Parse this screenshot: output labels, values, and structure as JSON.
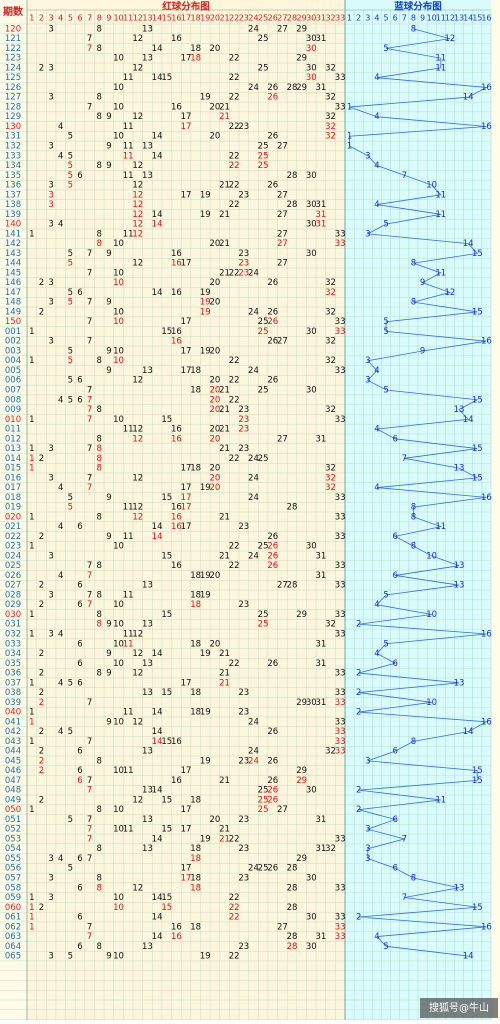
{
  "header": {
    "period_label": "期数",
    "red_title": "红球分布图",
    "blue_title": "蓝球分布图",
    "red_columns": [
      1,
      2,
      3,
      4,
      5,
      6,
      7,
      8,
      9,
      10,
      11,
      12,
      13,
      14,
      15,
      16,
      17,
      18,
      19,
      20,
      21,
      22,
      23,
      24,
      25,
      26,
      27,
      28,
      29,
      30,
      31,
      32,
      33
    ],
    "blue_columns": [
      1,
      2,
      3,
      4,
      5,
      6,
      7,
      8,
      9,
      10,
      11,
      12,
      13,
      14,
      15,
      16
    ]
  },
  "rows": [
    {
      "period": "120",
      "red": [
        3,
        8,
        13,
        24,
        27,
        29
      ],
      "blue": 8
    },
    {
      "period": "121",
      "red": [
        7,
        12,
        16,
        25,
        30,
        31
      ],
      "blue": 12
    },
    {
      "period": "122",
      "red": [
        7,
        8,
        14,
        18,
        20,
        30
      ],
      "blue": 5
    },
    {
      "period": "123",
      "red": [
        10,
        13,
        17,
        18,
        22,
        29
      ],
      "blue": 11
    },
    {
      "period": "124",
      "red": [
        2,
        3,
        12,
        25,
        30,
        32
      ],
      "blue": 11
    },
    {
      "period": "125",
      "red": [
        11,
        14,
        15,
        22,
        30,
        33
      ],
      "blue": 4
    },
    {
      "period": "126",
      "red": [
        10,
        24,
        26,
        28,
        29,
        31
      ],
      "blue": 16
    },
    {
      "period": "127",
      "red": [
        3,
        8,
        19,
        22,
        26,
        32
      ],
      "blue": 14
    },
    {
      "period": "128",
      "red": [
        7,
        10,
        16,
        20,
        21,
        33
      ],
      "blue": 1
    },
    {
      "period": "129",
      "red": [
        8,
        9,
        12,
        17,
        21,
        32
      ],
      "blue": 4
    },
    {
      "period": "130",
      "red": [
        4,
        11,
        17,
        22,
        23,
        32
      ],
      "blue": 16
    },
    {
      "period": "131",
      "red": [
        5,
        10,
        14,
        20,
        26,
        32
      ],
      "blue": 1
    },
    {
      "period": "132",
      "red": [
        3,
        9,
        11,
        13,
        25,
        27
      ],
      "blue": 1
    },
    {
      "period": "133",
      "red": [
        4,
        5,
        11,
        14,
        22,
        25
      ],
      "blue": 3
    },
    {
      "period": "134",
      "red": [
        5,
        8,
        9,
        12,
        22,
        25
      ],
      "blue": 4
    },
    {
      "period": "135",
      "red": [
        5,
        6,
        11,
        13,
        28,
        30
      ],
      "blue": 7
    },
    {
      "period": "136",
      "red": [
        3,
        5,
        12,
        21,
        22,
        26
      ],
      "blue": 10
    },
    {
      "period": "137",
      "red": [
        3,
        12,
        17,
        19,
        23,
        27
      ],
      "blue": 11
    },
    {
      "period": "138",
      "red": [
        3,
        12,
        22,
        28,
        30,
        31
      ],
      "blue": 4
    },
    {
      "period": "139",
      "red": [
        12,
        14,
        19,
        21,
        27,
        31
      ],
      "blue": 11
    },
    {
      "period": "140",
      "red": [
        3,
        4,
        12,
        14,
        30,
        31
      ],
      "blue": 5
    },
    {
      "period": "141",
      "red": [
        1,
        8,
        11,
        12,
        27,
        33
      ],
      "blue": 3
    },
    {
      "period": "142",
      "red": [
        8,
        10,
        20,
        21,
        27,
        33
      ],
      "blue": 14
    },
    {
      "period": "143",
      "red": [
        5,
        7,
        9,
        16,
        23,
        30
      ],
      "blue": 15
    },
    {
      "period": "144",
      "red": [
        5,
        12,
        16,
        17,
        23,
        27
      ],
      "blue": 8
    },
    {
      "period": "145",
      "red": [
        7,
        10,
        21,
        22,
        23,
        24
      ],
      "blue": 11
    },
    {
      "period": "146",
      "red": [
        2,
        3,
        10,
        20,
        26,
        32
      ],
      "blue": 9
    },
    {
      "period": "147",
      "red": [
        5,
        6,
        14,
        16,
        19,
        32
      ],
      "blue": 12
    },
    {
      "period": "148",
      "red": [
        3,
        5,
        7,
        9,
        19,
        20
      ],
      "blue": 8
    },
    {
      "period": "149",
      "red": [
        2,
        10,
        19,
        24,
        26,
        32
      ],
      "blue": 15
    },
    {
      "period": "150",
      "red": [
        7,
        10,
        17,
        25,
        26,
        33
      ],
      "blue": 5
    },
    {
      "period": "001",
      "red": [
        1,
        15,
        16,
        25,
        30,
        33
      ],
      "blue": 5
    },
    {
      "period": "002",
      "red": [
        3,
        7,
        16,
        26,
        27,
        32
      ],
      "blue": 16
    },
    {
      "period": "003",
      "red": [
        5,
        9,
        10,
        17,
        19,
        20
      ],
      "blue": 9
    },
    {
      "period": "004",
      "red": [
        1,
        5,
        8,
        10,
        22,
        32
      ],
      "blue": 3
    },
    {
      "period": "005",
      "red": [
        9,
        13,
        17,
        18,
        24,
        33
      ],
      "blue": 4
    },
    {
      "period": "006",
      "red": [
        5,
        6,
        12,
        20,
        22,
        26
      ],
      "blue": 3
    },
    {
      "period": "007",
      "red": [
        7,
        18,
        20,
        21,
        25,
        30
      ],
      "blue": 5
    },
    {
      "period": "008",
      "red": [
        4,
        5,
        6,
        7,
        20,
        22
      ],
      "blue": 15
    },
    {
      "period": "009",
      "red": [
        7,
        8,
        20,
        21,
        23,
        32
      ],
      "blue": 13
    },
    {
      "period": "010",
      "red": [
        1,
        7,
        10,
        15,
        23,
        33
      ],
      "blue": 14
    },
    {
      "period": "011",
      "red": [
        11,
        12,
        16,
        20,
        21,
        23
      ],
      "blue": 4
    },
    {
      "period": "012",
      "red": [
        8,
        12,
        16,
        20,
        27,
        31
      ],
      "blue": 6
    },
    {
      "period": "013",
      "red": [
        1,
        3,
        7,
        8,
        21,
        23
      ],
      "blue": 15
    },
    {
      "period": "014",
      "red": [
        1,
        2,
        8,
        22,
        24,
        25
      ],
      "blue": 7
    },
    {
      "period": "015",
      "red": [
        1,
        8,
        17,
        18,
        20,
        32
      ],
      "blue": 13
    },
    {
      "period": "016",
      "red": [
        3,
        7,
        12,
        20,
        24,
        32
      ],
      "blue": 15
    },
    {
      "period": "017",
      "red": [
        4,
        7,
        17,
        19,
        20,
        32
      ],
      "blue": 4
    },
    {
      "period": "018",
      "red": [
        5,
        9,
        15,
        17,
        24,
        33
      ],
      "blue": 16
    },
    {
      "period": "019",
      "red": [
        5,
        11,
        12,
        16,
        17,
        28
      ],
      "blue": 8
    },
    {
      "period": "020",
      "red": [
        1,
        8,
        12,
        16,
        21,
        33
      ],
      "blue": 8
    },
    {
      "period": "021",
      "red": [
        4,
        6,
        14,
        16,
        17,
        23
      ],
      "blue": 11
    },
    {
      "period": "022",
      "red": [
        2,
        9,
        11,
        14,
        26,
        33
      ],
      "blue": 6
    },
    {
      "period": "023",
      "red": [
        1,
        10,
        22,
        25,
        26,
        30
      ],
      "blue": 8
    },
    {
      "period": "024",
      "red": [
        3,
        15,
        21,
        24,
        26,
        31
      ],
      "blue": 10
    },
    {
      "period": "025",
      "red": [
        7,
        8,
        16,
        22,
        26,
        33
      ],
      "blue": 13
    },
    {
      "period": "026",
      "red": [
        4,
        7,
        18,
        19,
        20,
        31
      ],
      "blue": 6
    },
    {
      "period": "027",
      "red": [
        2,
        6,
        13,
        27,
        28,
        33
      ],
      "blue": 13
    },
    {
      "period": "028",
      "red": [
        3,
        7,
        8,
        11,
        18,
        19
      ],
      "blue": 5
    },
    {
      "period": "029",
      "red": [
        2,
        6,
        7,
        10,
        18,
        23
      ],
      "blue": 4
    },
    {
      "period": "030",
      "red": [
        1,
        8,
        15,
        25,
        29,
        33
      ],
      "blue": 10
    },
    {
      "period": "031",
      "red": [
        8,
        9,
        10,
        13,
        25,
        32
      ],
      "blue": 2
    },
    {
      "period": "032",
      "red": [
        1,
        3,
        4,
        11,
        12,
        33
      ],
      "blue": 16
    },
    {
      "period": "033",
      "red": [
        6,
        10,
        11,
        18,
        20,
        31
      ],
      "blue": 5
    },
    {
      "period": "034",
      "red": [
        2,
        9,
        12,
        14,
        19,
        21
      ],
      "blue": 4
    },
    {
      "period": "035",
      "red": [
        6,
        10,
        13,
        22,
        26,
        31
      ],
      "blue": 6
    },
    {
      "period": "036",
      "red": [
        2,
        8,
        9,
        12,
        21,
        33
      ],
      "blue": 2
    },
    {
      "period": "037",
      "red": [
        1,
        4,
        5,
        6,
        17,
        21
      ],
      "blue": 13
    },
    {
      "period": "038",
      "red": [
        2,
        13,
        15,
        18,
        23,
        33
      ],
      "blue": 2
    },
    {
      "period": "039",
      "red": [
        2,
        7,
        29,
        30,
        31,
        33
      ],
      "blue": 10
    },
    {
      "period": "040",
      "red": [
        1,
        11,
        14,
        18,
        19,
        23
      ],
      "blue": 2
    },
    {
      "period": "041",
      "red": [
        1,
        9,
        10,
        12,
        24,
        33
      ],
      "blue": 16
    },
    {
      "period": "042",
      "red": [
        2,
        4,
        5,
        14,
        26,
        33
      ],
      "blue": 14
    },
    {
      "period": "043",
      "red": [
        1,
        7,
        14,
        15,
        16,
        33
      ],
      "blue": 8
    },
    {
      "period": "044",
      "red": [
        2,
        6,
        13,
        24,
        32,
        33
      ],
      "blue": 6
    },
    {
      "period": "045",
      "red": [
        2,
        8,
        19,
        23,
        24,
        26
      ],
      "blue": 3
    },
    {
      "period": "046",
      "red": [
        2,
        6,
        10,
        11,
        17,
        29
      ],
      "blue": 15
    },
    {
      "period": "047",
      "red": [
        6,
        7,
        16,
        21,
        26,
        29
      ],
      "blue": 15
    },
    {
      "period": "048",
      "red": [
        7,
        13,
        14,
        25,
        26,
        30
      ],
      "blue": 2
    },
    {
      "period": "049",
      "red": [
        2,
        12,
        15,
        18,
        25,
        26
      ],
      "blue": 11
    },
    {
      "period": "050",
      "red": [
        1,
        8,
        10,
        17,
        25,
        27
      ],
      "blue": 2
    },
    {
      "period": "051",
      "red": [
        5,
        7,
        13,
        20,
        23,
        31
      ],
      "blue": 6
    },
    {
      "period": "052",
      "red": [
        7,
        10,
        11,
        15,
        17,
        21
      ],
      "blue": 3
    },
    {
      "period": "053",
      "red": [
        7,
        14,
        19,
        21,
        22,
        33
      ],
      "blue": 7
    },
    {
      "period": "054",
      "red": [
        8,
        13,
        18,
        23,
        31,
        32
      ],
      "blue": 3
    },
    {
      "period": "055",
      "red": [
        3,
        4,
        6,
        7,
        18,
        29
      ],
      "blue": 3
    },
    {
      "period": "056",
      "red": [
        5,
        17,
        24,
        25,
        26,
        28
      ],
      "blue": 6
    },
    {
      "period": "057",
      "red": [
        3,
        8,
        17,
        18,
        23,
        30
      ],
      "blue": 8
    },
    {
      "period": "058",
      "red": [
        6,
        8,
        12,
        18,
        28,
        33
      ],
      "blue": 13
    },
    {
      "period": "059",
      "red": [
        1,
        3,
        10,
        14,
        15,
        22
      ],
      "blue": 7
    },
    {
      "period": "060",
      "red": [
        1,
        2,
        10,
        15,
        22,
        28
      ],
      "blue": 15
    },
    {
      "period": "061",
      "red": [
        1,
        6,
        14,
        22,
        30,
        33
      ],
      "blue": 2
    },
    {
      "period": "062",
      "red": [
        1,
        7,
        16,
        18,
        27,
        33
      ],
      "blue": 16
    },
    {
      "period": "063",
      "red": [
        7,
        14,
        16,
        28,
        31,
        33
      ],
      "blue": 4
    },
    {
      "period": "064",
      "red": [
        6,
        8,
        13,
        23,
        28,
        30
      ],
      "blue": 5
    },
    {
      "period": "065",
      "red": [
        3,
        5,
        9,
        10,
        19,
        22
      ],
      "blue": 14
    }
  ],
  "footer": {
    "credit": "搜狐号@牛山"
  }
}
